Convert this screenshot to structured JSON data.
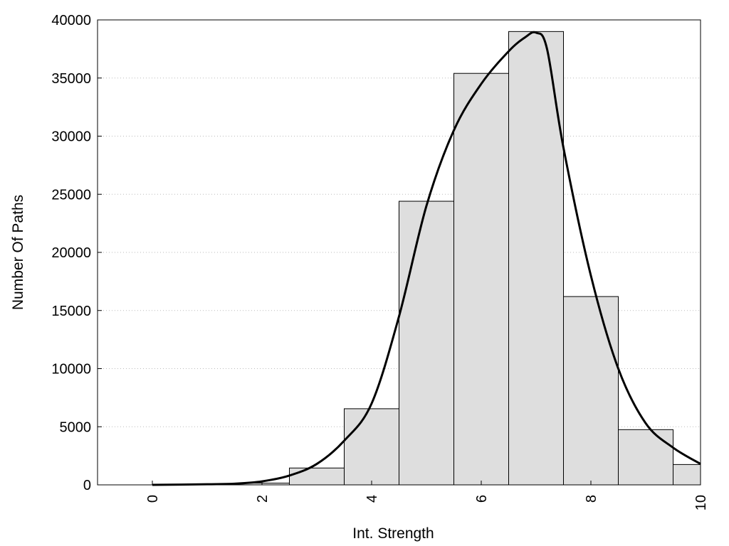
{
  "chart_data": {
    "type": "bar",
    "xlabel": "Int. Strength",
    "ylabel": "Number Of Paths",
    "xlim": [
      -1,
      10
    ],
    "ylim": [
      0,
      40000
    ],
    "x_ticks": [
      0,
      2,
      4,
      6,
      8,
      10
    ],
    "y_ticks": [
      0,
      5000,
      10000,
      15000,
      20000,
      25000,
      30000,
      35000,
      40000
    ],
    "grid": "horizontal dotted",
    "bar_fill": "#dedede",
    "bar_stroke": "#000000",
    "line_color": "#000000",
    "bars": [
      {
        "x": 0,
        "value": 0
      },
      {
        "x": 1,
        "value": 0
      },
      {
        "x": 2,
        "value": 150
      },
      {
        "x": 3,
        "value": 1450
      },
      {
        "x": 4,
        "value": 6550
      },
      {
        "x": 5,
        "value": 24400
      },
      {
        "x": 6,
        "value": 35400
      },
      {
        "x": 7,
        "value": 39000
      },
      {
        "x": 8,
        "value": 16200
      },
      {
        "x": 9,
        "value": 4750
      },
      {
        "x": 10,
        "value": 1750
      }
    ],
    "curve": {
      "x": [
        0,
        1,
        1.5,
        2,
        2.5,
        3,
        3.5,
        4,
        4.5,
        5,
        5.5,
        6,
        6.5,
        6.8,
        7,
        7.2,
        7.5,
        8,
        8.5,
        9,
        9.5,
        10
      ],
      "y": [
        0,
        50,
        100,
        300,
        800,
        1800,
        3800,
        7000,
        14500,
        24000,
        30500,
        34500,
        37300,
        38500,
        38900,
        37500,
        29000,
        18000,
        10000,
        5300,
        3200,
        1800
      ]
    }
  }
}
